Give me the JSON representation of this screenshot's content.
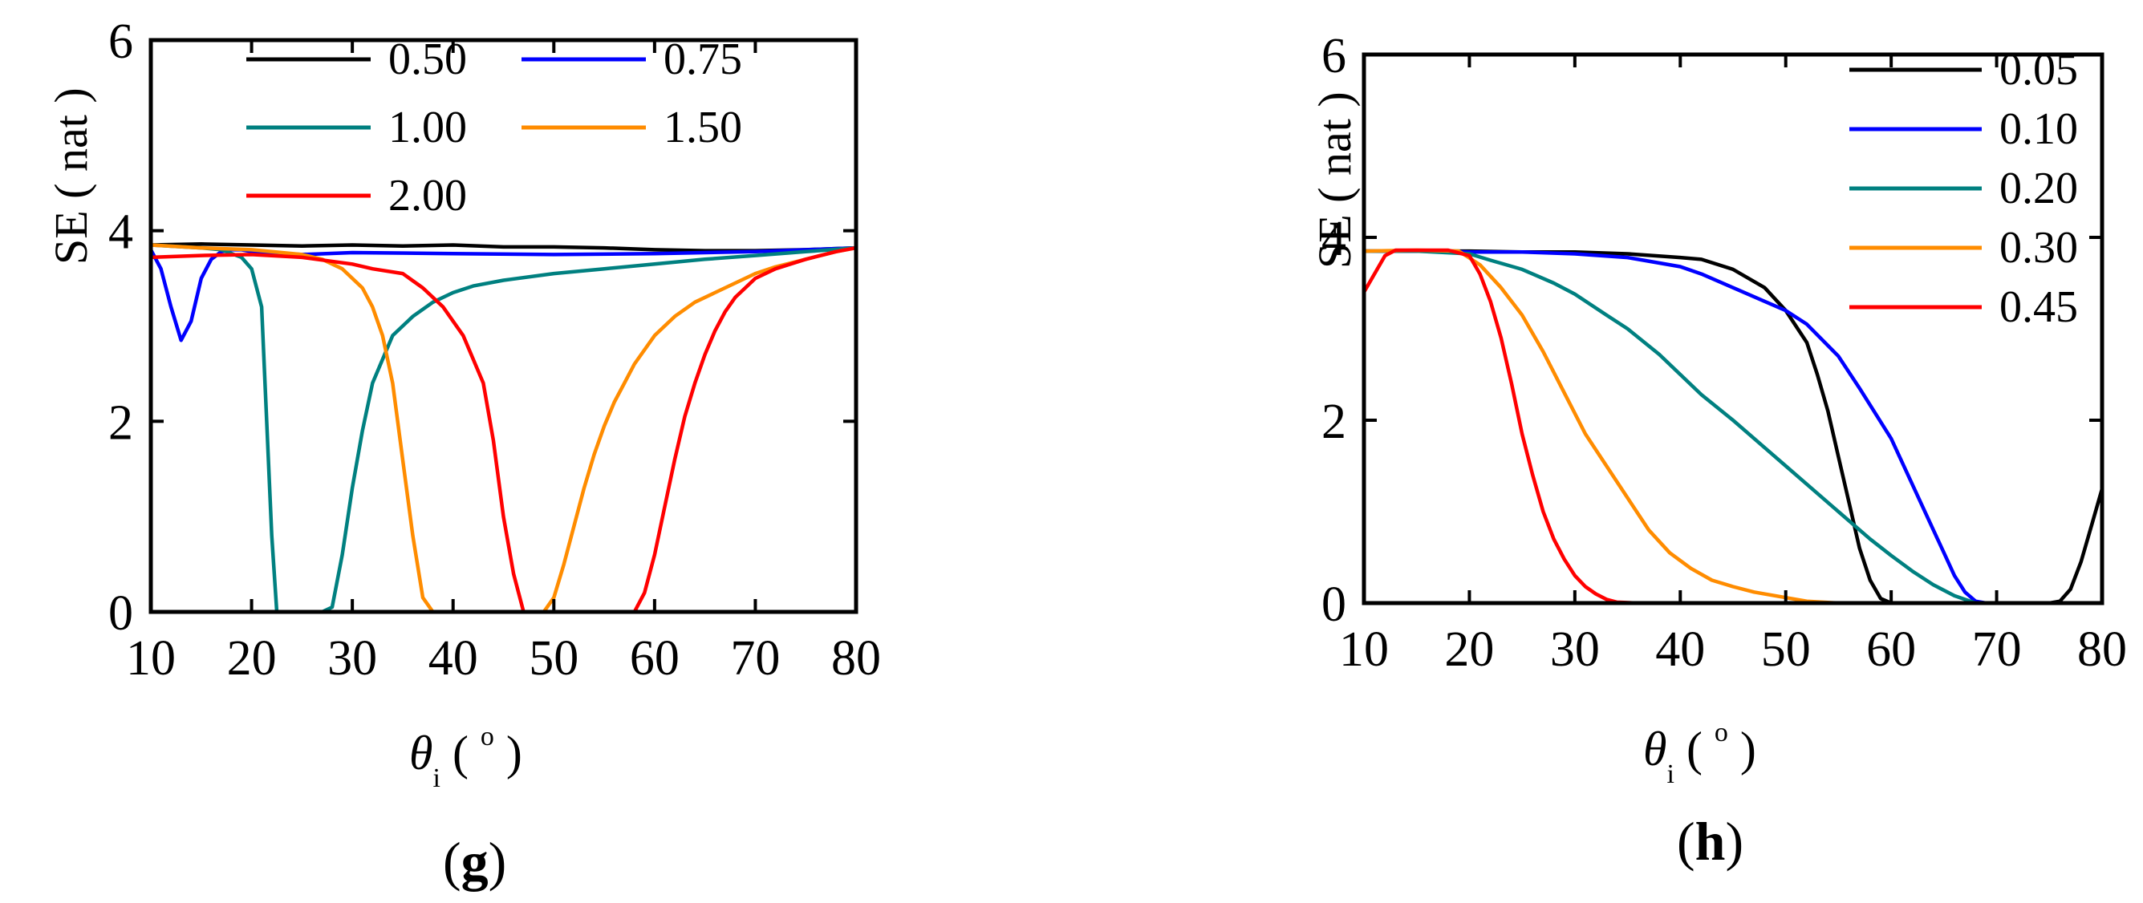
{
  "chart_data": [
    {
      "id": "g",
      "type": "line",
      "panel_label": "g",
      "ylabel": "SE ( nat )",
      "xlabel_symbol": "θ",
      "xlabel_sub": "i",
      "xlabel_unit_open": "(",
      "xlabel_unit_sup": "o",
      "xlabel_unit_close": ")",
      "xlim": [
        10,
        80
      ],
      "ylim": [
        0,
        6
      ],
      "xticks": [
        10,
        20,
        30,
        40,
        50,
        60,
        70,
        80
      ],
      "yticks": [
        0,
        2,
        4,
        6
      ],
      "legend_columns": 2,
      "series": [
        {
          "name": "0.50",
          "color": "#000000",
          "x": [
            10,
            15,
            20,
            25,
            30,
            35,
            40,
            45,
            50,
            55,
            60,
            65,
            70,
            75,
            80
          ],
          "y": [
            3.85,
            3.86,
            3.85,
            3.84,
            3.85,
            3.84,
            3.85,
            3.83,
            3.83,
            3.82,
            3.8,
            3.79,
            3.79,
            3.8,
            3.82
          ]
        },
        {
          "name": "0.75",
          "color": "#0000FF",
          "x": [
            10,
            11,
            12,
            13,
            14,
            15,
            16,
            17,
            18,
            19,
            20,
            25,
            30,
            40,
            50,
            60,
            70,
            80
          ],
          "y": [
            3.8,
            3.6,
            3.2,
            2.85,
            3.05,
            3.5,
            3.7,
            3.78,
            3.8,
            3.8,
            3.78,
            3.75,
            3.77,
            3.76,
            3.75,
            3.76,
            3.78,
            3.82
          ]
        },
        {
          "name": "1.00",
          "color": "#008080",
          "x": [
            10,
            15,
            17,
            19,
            20,
            21,
            21.5,
            22,
            22.5,
            23,
            25,
            27,
            28,
            29,
            30,
            31,
            32,
            34,
            36,
            38,
            40,
            42,
            45,
            50,
            55,
            60,
            65,
            70,
            75,
            80
          ],
          "y": [
            3.85,
            3.82,
            3.8,
            3.72,
            3.6,
            3.2,
            2.0,
            0.8,
            0.0,
            0.0,
            0.0,
            0.0,
            0.05,
            0.6,
            1.3,
            1.9,
            2.4,
            2.9,
            3.1,
            3.25,
            3.35,
            3.42,
            3.48,
            3.55,
            3.6,
            3.65,
            3.7,
            3.74,
            3.78,
            3.82
          ]
        },
        {
          "name": "1.50",
          "color": "#FF8C00",
          "x": [
            10,
            15,
            20,
            25,
            27,
            29,
            31,
            32,
            33,
            34,
            35,
            36,
            37,
            38,
            40,
            45,
            49,
            50,
            51,
            52,
            53,
            54,
            55,
            56,
            57,
            58,
            60,
            62,
            64,
            66,
            68,
            70,
            72,
            75,
            78,
            80
          ],
          "y": [
            3.85,
            3.82,
            3.8,
            3.75,
            3.7,
            3.6,
            3.4,
            3.2,
            2.9,
            2.4,
            1.6,
            0.8,
            0.15,
            0.0,
            0.0,
            0.0,
            0.0,
            0.15,
            0.5,
            0.9,
            1.3,
            1.65,
            1.95,
            2.2,
            2.4,
            2.6,
            2.9,
            3.1,
            3.25,
            3.35,
            3.45,
            3.55,
            3.62,
            3.7,
            3.78,
            3.82
          ]
        },
        {
          "name": "2.00",
          "color": "#FF0000",
          "x": [
            10,
            15,
            20,
            25,
            30,
            32,
            35,
            37,
            39,
            41,
            43,
            44,
            45,
            46,
            47,
            48,
            50,
            55,
            58,
            59,
            60,
            61,
            62,
            63,
            64,
            65,
            66,
            67,
            68,
            69,
            70,
            72,
            75,
            78,
            80
          ],
          "y": [
            3.72,
            3.74,
            3.75,
            3.72,
            3.65,
            3.6,
            3.55,
            3.4,
            3.2,
            2.9,
            2.4,
            1.8,
            1.0,
            0.4,
            0.0,
            0.0,
            0.0,
            0.0,
            0.0,
            0.2,
            0.6,
            1.1,
            1.6,
            2.05,
            2.4,
            2.7,
            2.95,
            3.15,
            3.3,
            3.4,
            3.5,
            3.6,
            3.7,
            3.78,
            3.82
          ]
        }
      ]
    },
    {
      "id": "h",
      "type": "line",
      "panel_label": "h",
      "ylabel": "SE ( nat )",
      "xlabel_symbol": "θ",
      "xlabel_sub": "i",
      "xlabel_unit_open": "(",
      "xlabel_unit_sup": "o",
      "xlabel_unit_close": ")",
      "xlim": [
        10,
        80
      ],
      "ylim": [
        0,
        6
      ],
      "xticks": [
        10,
        20,
        30,
        40,
        50,
        60,
        70,
        80
      ],
      "yticks": [
        0,
        2,
        4,
        6
      ],
      "legend_columns": 1,
      "series": [
        {
          "name": "0.05",
          "color": "#000000",
          "x": [
            10,
            15,
            20,
            25,
            30,
            35,
            40,
            42,
            45,
            48,
            50,
            52,
            53,
            54,
            55,
            56,
            57,
            58,
            59,
            60,
            61,
            62,
            65,
            70,
            75,
            76,
            77,
            78,
            79,
            80
          ],
          "y": [
            3.85,
            3.85,
            3.85,
            3.84,
            3.84,
            3.82,
            3.78,
            3.76,
            3.65,
            3.45,
            3.2,
            2.85,
            2.5,
            2.1,
            1.6,
            1.1,
            0.6,
            0.25,
            0.05,
            0.0,
            0.0,
            0.0,
            0.0,
            0.0,
            0.0,
            0.02,
            0.15,
            0.45,
            0.85,
            1.25
          ]
        },
        {
          "name": "0.10",
          "color": "#0000FF",
          "x": [
            10,
            15,
            20,
            25,
            30,
            35,
            40,
            42,
            45,
            48,
            50,
            52,
            55,
            57,
            60,
            62,
            64,
            65,
            66,
            67,
            68,
            69,
            70,
            75,
            80
          ],
          "y": [
            3.85,
            3.85,
            3.84,
            3.84,
            3.82,
            3.78,
            3.68,
            3.6,
            3.45,
            3.3,
            3.2,
            3.05,
            2.7,
            2.35,
            1.8,
            1.3,
            0.8,
            0.55,
            0.3,
            0.12,
            0.02,
            0.0,
            0.0,
            0.0,
            0.0
          ]
        },
        {
          "name": "0.20",
          "color": "#008080",
          "x": [
            10,
            15,
            20,
            22,
            25,
            28,
            30,
            33,
            35,
            38,
            40,
            42,
            45,
            48,
            50,
            52,
            55,
            58,
            60,
            62,
            64,
            66,
            68,
            70,
            75,
            80
          ],
          "y": [
            3.85,
            3.85,
            3.82,
            3.75,
            3.65,
            3.5,
            3.38,
            3.15,
            3.0,
            2.72,
            2.5,
            2.28,
            2.0,
            1.7,
            1.5,
            1.3,
            1.0,
            0.7,
            0.52,
            0.35,
            0.2,
            0.08,
            0.0,
            0.0,
            0.0,
            0.0
          ]
        },
        {
          "name": "0.30",
          "color": "#FF8C00",
          "x": [
            10,
            15,
            19,
            21,
            23,
            25,
            27,
            29,
            31,
            33,
            35,
            37,
            39,
            41,
            43,
            45,
            47,
            50,
            52,
            55,
            60,
            65,
            70,
            75,
            80
          ],
          "y": [
            3.85,
            3.86,
            3.85,
            3.7,
            3.45,
            3.15,
            2.75,
            2.3,
            1.85,
            1.5,
            1.15,
            0.8,
            0.55,
            0.38,
            0.25,
            0.18,
            0.12,
            0.06,
            0.02,
            0.0,
            0.0,
            0.0,
            0.0,
            0.0,
            0.0
          ]
        },
        {
          "name": "0.45",
          "color": "#FF0000",
          "x": [
            10,
            11,
            12,
            13,
            15,
            18,
            20,
            21,
            22,
            23,
            24,
            25,
            26,
            27,
            28,
            29,
            30,
            31,
            32,
            33,
            34,
            36,
            40,
            50,
            60,
            70,
            80
          ],
          "y": [
            3.4,
            3.6,
            3.8,
            3.86,
            3.86,
            3.86,
            3.8,
            3.6,
            3.3,
            2.9,
            2.4,
            1.85,
            1.4,
            1.0,
            0.7,
            0.48,
            0.3,
            0.18,
            0.1,
            0.04,
            0.01,
            0.0,
            0.0,
            0.0,
            0.0,
            0.0,
            0.0
          ]
        }
      ]
    }
  ]
}
